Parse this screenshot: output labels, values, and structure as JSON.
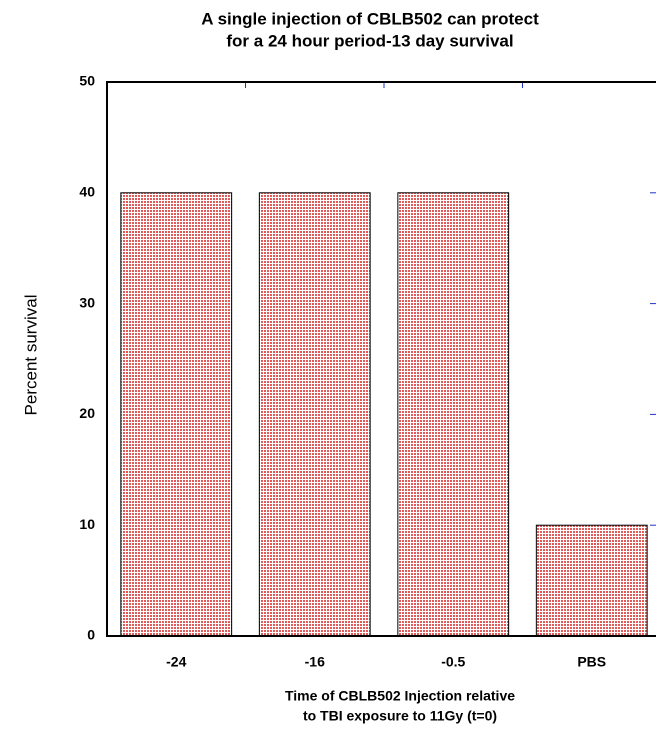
{
  "chart_data": {
    "type": "bar",
    "title": [
      "A single injection of CBLB502 can protect",
      "for a 24 hour period-13 day survival"
    ],
    "xlabel": [
      "Time of CBLB502 Injection relative",
      "to TBI exposure to 11Gy (t=0)"
    ],
    "ylabel": "Percent survival",
    "categories": [
      "-24",
      "-16",
      "-0.5",
      "PBS"
    ],
    "values": [
      40,
      40,
      40,
      10
    ],
    "color": "#e05a5a",
    "ylim": [
      0,
      50
    ],
    "yticks": [
      0,
      10,
      20,
      30,
      40,
      50
    ],
    "grid": false
  }
}
